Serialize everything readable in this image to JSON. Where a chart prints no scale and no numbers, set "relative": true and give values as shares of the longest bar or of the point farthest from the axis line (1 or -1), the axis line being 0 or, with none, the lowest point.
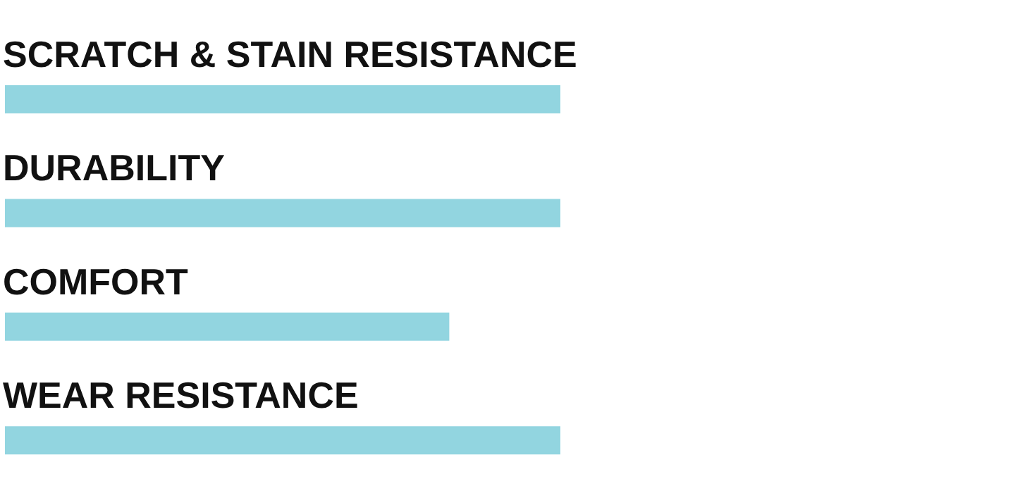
{
  "chart_data": {
    "type": "bar",
    "orientation": "horizontal",
    "relative": true,
    "categories": [
      "SCRATCH & STAIN RESISTANCE",
      "DURABILITY",
      "COMFORT",
      "WEAR RESISTANCE"
    ],
    "values": [
      1,
      1,
      0.8,
      1
    ],
    "color": "#92d5e0"
  }
}
